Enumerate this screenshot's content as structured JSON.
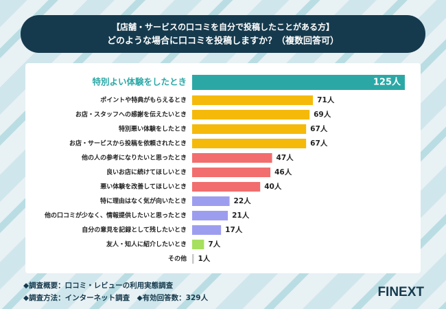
{
  "chart_data": {
    "type": "bar",
    "title": "【店舗・サービスの口コミを自分で投稿したことがある方】",
    "subtitle": "どのような場合に口コミを投稿しますか？（複数回答可）",
    "categories": [
      "特別よい体験をしたとき",
      "ポイントや特典がもらえるとき",
      "お店・スタッフへの感謝を伝えたいとき",
      "特別悪い体験をしたとき",
      "お店・サービスから投稿を依頼されたとき",
      "他の人の参考になりたいと思ったとき",
      "良いお店に続けてほしいとき",
      "悪い体験を改善してほしいとき",
      "特に理由はなく気が向いたとき",
      "他の口コミが少なく、情報提供したいと思ったとき",
      "自分の意見を記録として残したいとき",
      "友人・知人に紹介したいとき",
      "その他"
    ],
    "values": [
      125,
      71,
      69,
      67,
      67,
      47,
      46,
      40,
      22,
      21,
      17,
      7,
      1
    ],
    "value_labels": [
      "125人",
      "71人",
      "69人",
      "67人",
      "67人",
      "47人",
      "46人",
      "40人",
      "22人",
      "21人",
      "17人",
      "7人",
      "1人"
    ],
    "colors": [
      "#2ba8a6",
      "#f5b90a",
      "#f5b90a",
      "#f5b90a",
      "#f5b90a",
      "#f26d6d",
      "#f26d6d",
      "#f26d6d",
      "#9d9df0",
      "#9d9df0",
      "#9d9df0",
      "#a6e05e",
      "#c8c8c8"
    ],
    "notes": [
      "◆調査概要：口コミ・レビューの利用実態調査",
      "◆調査方法：インターネット調査　◆有効回答数：329人"
    ],
    "brand": "FINEXT"
  }
}
